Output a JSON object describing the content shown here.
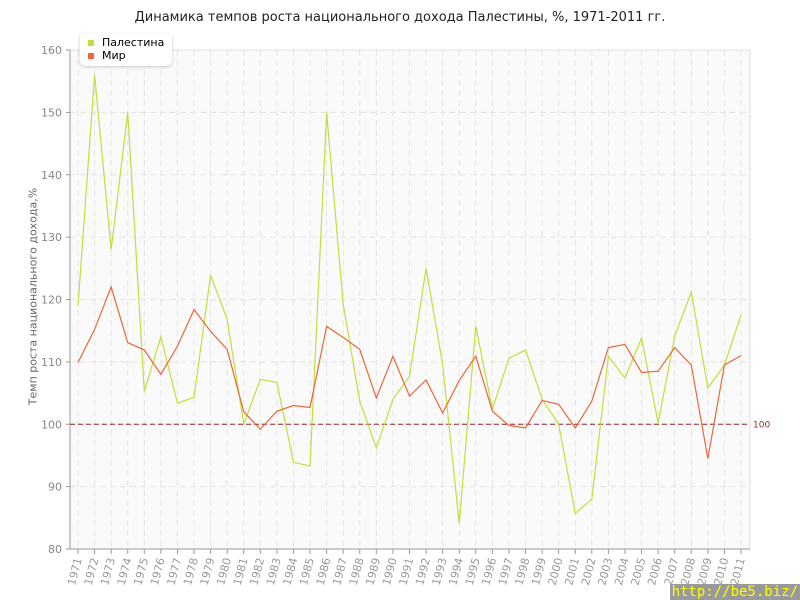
{
  "chart_data": {
    "type": "line",
    "title": "Динамика темпов роста национального дохода Палестины, %, 1971-2011 гг.",
    "ylabel": "Темп роста национального дохода,%",
    "xlabel": "",
    "ylim": [
      80,
      160
    ],
    "yticks": [
      80,
      90,
      100,
      110,
      120,
      130,
      140,
      150,
      160
    ],
    "x": [
      1971,
      1972,
      1973,
      1974,
      1975,
      1976,
      1977,
      1978,
      1979,
      1980,
      1981,
      1982,
      1983,
      1984,
      1985,
      1986,
      1987,
      1988,
      1989,
      1990,
      1991,
      1992,
      1993,
      1994,
      1995,
      1996,
      1997,
      1998,
      1999,
      2000,
      2001,
      2002,
      2003,
      2004,
      2005,
      2006,
      2007,
      2008,
      2009,
      2010,
      2011
    ],
    "grid": true,
    "legend_position": "top-left",
    "reference_line": {
      "value": 100,
      "label": "100",
      "color": "#8b2a2a"
    },
    "series": [
      {
        "name": "Палестина",
        "color": "#c2de3a",
        "values": [
          119,
          156,
          128,
          150,
          105.3,
          114,
          103.4,
          104.3,
          123.9,
          116.8,
          100,
          107.2,
          106.7,
          93.9,
          93.3,
          150,
          119.2,
          103.7,
          96.2,
          104,
          107.7,
          125,
          109.6,
          84.1,
          115.7,
          102.4,
          110.6,
          111.9,
          104,
          100,
          85.7,
          88,
          110.9,
          107.4,
          113.8,
          100.2,
          114.1,
          121.2,
          105.8,
          109.5,
          117.5
        ]
      },
      {
        "name": "Мир",
        "color": "#e8683a",
        "values": [
          109.9,
          115.2,
          122,
          113.1,
          111.9,
          108,
          112.5,
          118.4,
          114.9,
          112,
          102,
          99.2,
          102.1,
          103,
          102.7,
          115.7,
          113.9,
          112,
          104.2,
          110.9,
          104.5,
          107.1,
          101.8,
          107,
          110.9,
          102.1,
          99.8,
          99.4,
          103.8,
          103.2,
          99.4,
          103.7,
          112.3,
          112.8,
          108.3,
          108.5,
          112.3,
          109.5,
          94.5,
          109.5,
          111
        ]
      }
    ]
  },
  "watermark": "http://be5.biz/"
}
